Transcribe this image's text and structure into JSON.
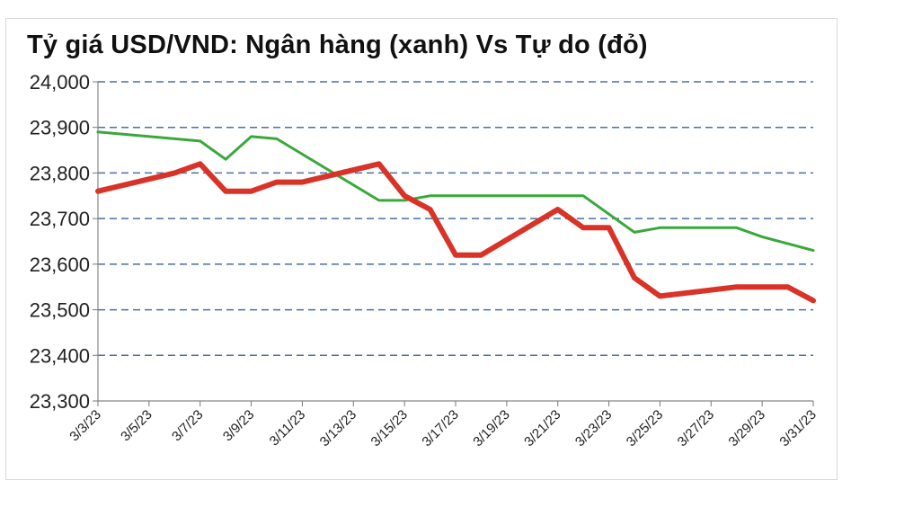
{
  "chart_data": {
    "type": "line",
    "title": "Tỷ giá USD/VND:  Ngân hàng (xanh) Vs Tự do (đỏ)",
    "xlabel": "",
    "ylabel": "",
    "ylim": [
      23300,
      24000
    ],
    "yticks": [
      23300,
      23400,
      23500,
      23600,
      23700,
      23800,
      23900,
      24000
    ],
    "ytick_labels": [
      "23,300",
      "23,400",
      "23,500",
      "23,600",
      "23,700",
      "23,800",
      "23,900",
      "24,000"
    ],
    "xlim": [
      "3/3/23",
      "3/31/23"
    ],
    "xtick_labels": [
      "3/3/23",
      "3/5/23",
      "3/7/23",
      "3/9/23",
      "3/11/23",
      "3/13/23",
      "3/15/23",
      "3/17/23",
      "3/19/23",
      "3/21/23",
      "3/23/23",
      "3/25/23",
      "3/27/23",
      "3/29/23",
      "3/31/23"
    ],
    "grid": "horizontal dashed",
    "series": [
      {
        "color": "#3aa83a",
        "points": [
          [
            "3/3/23",
            23890
          ],
          [
            "3/7/23",
            23870
          ],
          [
            "3/8/23",
            23830
          ],
          [
            "3/9/23",
            23880
          ],
          [
            "3/10/23",
            23875
          ],
          [
            "3/14/23",
            23740
          ],
          [
            "3/15/23",
            23740
          ],
          [
            "3/16/23",
            23750
          ],
          [
            "3/22/23",
            23750
          ],
          [
            "3/24/23",
            23670
          ],
          [
            "3/25/23",
            23680
          ],
          [
            "3/28/23",
            23680
          ],
          [
            "3/29/23",
            23660
          ],
          [
            "3/31/23",
            23630
          ]
        ]
      },
      {
        "color": "#d93327",
        "points": [
          [
            "3/3/23",
            23760
          ],
          [
            "3/6/23",
            23800
          ],
          [
            "3/7/23",
            23820
          ],
          [
            "3/8/23",
            23760
          ],
          [
            "3/9/23",
            23760
          ],
          [
            "3/10/23",
            23780
          ],
          [
            "3/11/23",
            23780
          ],
          [
            "3/14/23",
            23820
          ],
          [
            "3/15/23",
            23750
          ],
          [
            "3/16/23",
            23720
          ],
          [
            "3/17/23",
            23620
          ],
          [
            "3/18/23",
            23620
          ],
          [
            "3/21/23",
            23720
          ],
          [
            "3/22/23",
            23680
          ],
          [
            "3/23/23",
            23680
          ],
          [
            "3/24/23",
            23570
          ],
          [
            "3/25/23",
            23530
          ],
          [
            "3/28/23",
            23550
          ],
          [
            "3/30/23",
            23550
          ],
          [
            "3/31/23",
            23520
          ]
        ]
      }
    ]
  }
}
